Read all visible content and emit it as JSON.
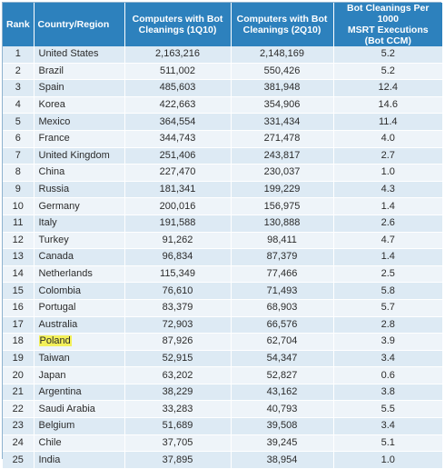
{
  "headers": {
    "rank": "Rank",
    "country": "Country/Region",
    "q1_line1": "Computers with Bot",
    "q1_line2": "Cleanings (1Q10)",
    "q2_line1": "Computers with Bot",
    "q2_line2": "Cleanings (2Q10)",
    "rate_line1": "Bot Cleanings Per 1000",
    "rate_line2": "MSRT Executions (Bot CCM)"
  },
  "highlighted_country": "Poland",
  "rows": [
    {
      "rank": "1",
      "country": "United States",
      "q1": "2,163,216",
      "q2": "2,148,169",
      "rate": "5.2"
    },
    {
      "rank": "2",
      "country": "Brazil",
      "q1": "511,002",
      "q2": "550,426",
      "rate": "5.2"
    },
    {
      "rank": "3",
      "country": "Spain",
      "q1": "485,603",
      "q2": "381,948",
      "rate": "12.4"
    },
    {
      "rank": "4",
      "country": "Korea",
      "q1": "422,663",
      "q2": "354,906",
      "rate": "14.6"
    },
    {
      "rank": "5",
      "country": "Mexico",
      "q1": "364,554",
      "q2": "331,434",
      "rate": "11.4"
    },
    {
      "rank": "6",
      "country": "France",
      "q1": "344,743",
      "q2": "271,478",
      "rate": "4.0"
    },
    {
      "rank": "7",
      "country": "United Kingdom",
      "q1": "251,406",
      "q2": "243,817",
      "rate": "2.7"
    },
    {
      "rank": "8",
      "country": "China",
      "q1": "227,470",
      "q2": "230,037",
      "rate": "1.0"
    },
    {
      "rank": "9",
      "country": "Russia",
      "q1": "181,341",
      "q2": "199,229",
      "rate": "4.3"
    },
    {
      "rank": "10",
      "country": "Germany",
      "q1": "200,016",
      "q2": "156,975",
      "rate": "1.4"
    },
    {
      "rank": "11",
      "country": "Italy",
      "q1": "191,588",
      "q2": "130,888",
      "rate": "2.6"
    },
    {
      "rank": "12",
      "country": "Turkey",
      "q1": "91,262",
      "q2": "98,411",
      "rate": "4.7"
    },
    {
      "rank": "13",
      "country": "Canada",
      "q1": "96,834",
      "q2": "87,379",
      "rate": "1.4"
    },
    {
      "rank": "14",
      "country": "Netherlands",
      "q1": "115,349",
      "q2": "77,466",
      "rate": "2.5"
    },
    {
      "rank": "15",
      "country": "Colombia",
      "q1": "76,610",
      "q2": "71,493",
      "rate": "5.8"
    },
    {
      "rank": "16",
      "country": "Portugal",
      "q1": "83,379",
      "q2": "68,903",
      "rate": "5.7"
    },
    {
      "rank": "17",
      "country": "Australia",
      "q1": "72,903",
      "q2": "66,576",
      "rate": "2.8"
    },
    {
      "rank": "18",
      "country": "Poland",
      "q1": "87,926",
      "q2": "62,704",
      "rate": "3.9"
    },
    {
      "rank": "19",
      "country": "Taiwan",
      "q1": "52,915",
      "q2": "54,347",
      "rate": "3.4"
    },
    {
      "rank": "20",
      "country": "Japan",
      "q1": "63,202",
      "q2": "52,827",
      "rate": "0.6"
    },
    {
      "rank": "21",
      "country": "Argentina",
      "q1": "38,229",
      "q2": "43,162",
      "rate": "3.8"
    },
    {
      "rank": "22",
      "country": "Saudi Arabia",
      "q1": "33,283",
      "q2": "40,793",
      "rate": "5.5"
    },
    {
      "rank": "23",
      "country": "Belgium",
      "q1": "51,689",
      "q2": "39,508",
      "rate": "3.4"
    },
    {
      "rank": "24",
      "country": "Chile",
      "q1": "37,705",
      "q2": "39,245",
      "rate": "5.1"
    },
    {
      "rank": "25",
      "country": "India",
      "q1": "37,895",
      "q2": "38,954",
      "rate": "1.0"
    }
  ]
}
